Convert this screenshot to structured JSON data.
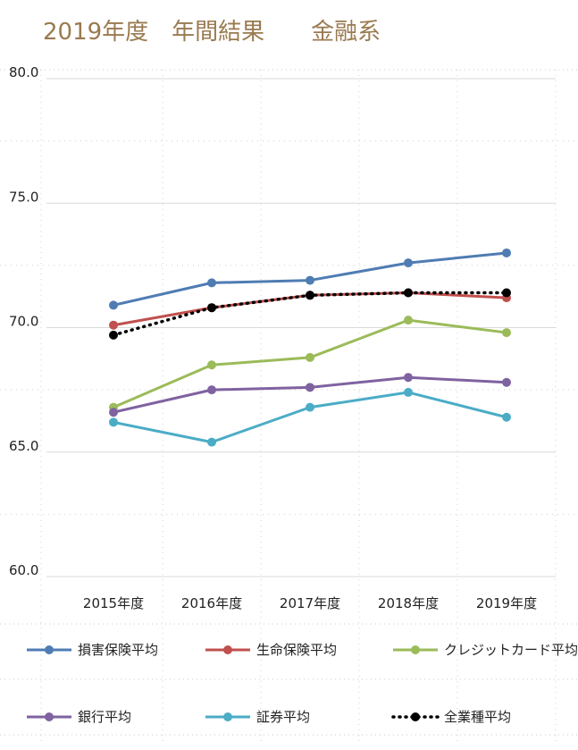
{
  "chart_data": {
    "type": "line",
    "title": "2019年度　年間結果　　金融系",
    "categories": [
      "2015年度",
      "2016年度",
      "2017年度",
      "2018年度",
      "2019年度"
    ],
    "ylim": [
      60.0,
      80.0
    ],
    "yticks": [
      "60.0",
      "65.0",
      "70.0",
      "75.0",
      "80.0"
    ],
    "ytick_values": [
      60,
      65,
      70,
      75,
      80
    ],
    "grid": true,
    "legend_position": "bottom",
    "series": [
      {
        "name": "損害保険平均",
        "color": "#4f7cb3",
        "dashed": false,
        "values": [
          70.9,
          71.8,
          71.9,
          72.6,
          73.0
        ]
      },
      {
        "name": "生命保険平均",
        "color": "#c0504d",
        "dashed": false,
        "values": [
          70.1,
          70.8,
          71.3,
          71.4,
          71.2
        ]
      },
      {
        "name": "クレジットカード平均",
        "color": "#9bbb59",
        "dashed": false,
        "values": [
          66.8,
          68.5,
          68.8,
          70.3,
          69.8
        ]
      },
      {
        "name": "銀行平均",
        "color": "#7f62a0",
        "dashed": false,
        "values": [
          66.6,
          67.5,
          67.6,
          68.0,
          67.8
        ]
      },
      {
        "name": "証券平均",
        "color": "#4bacc6",
        "dashed": false,
        "values": [
          66.2,
          65.4,
          66.8,
          67.4,
          66.4
        ]
      },
      {
        "name": "全業種平均",
        "color": "#000000",
        "dashed": true,
        "values": [
          69.7,
          70.8,
          71.3,
          71.4,
          71.4
        ]
      }
    ]
  }
}
